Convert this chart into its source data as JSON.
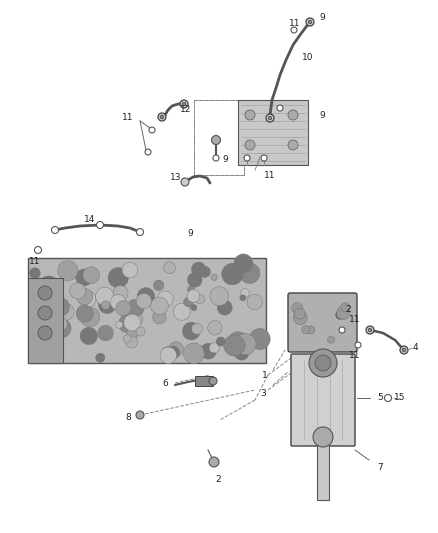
{
  "bg_color": "#ffffff",
  "fig_width": 4.38,
  "fig_height": 5.33,
  "dpi": 100,
  "lc": "#555555",
  "label_fs": 6.5,
  "label_color": "#222222"
}
